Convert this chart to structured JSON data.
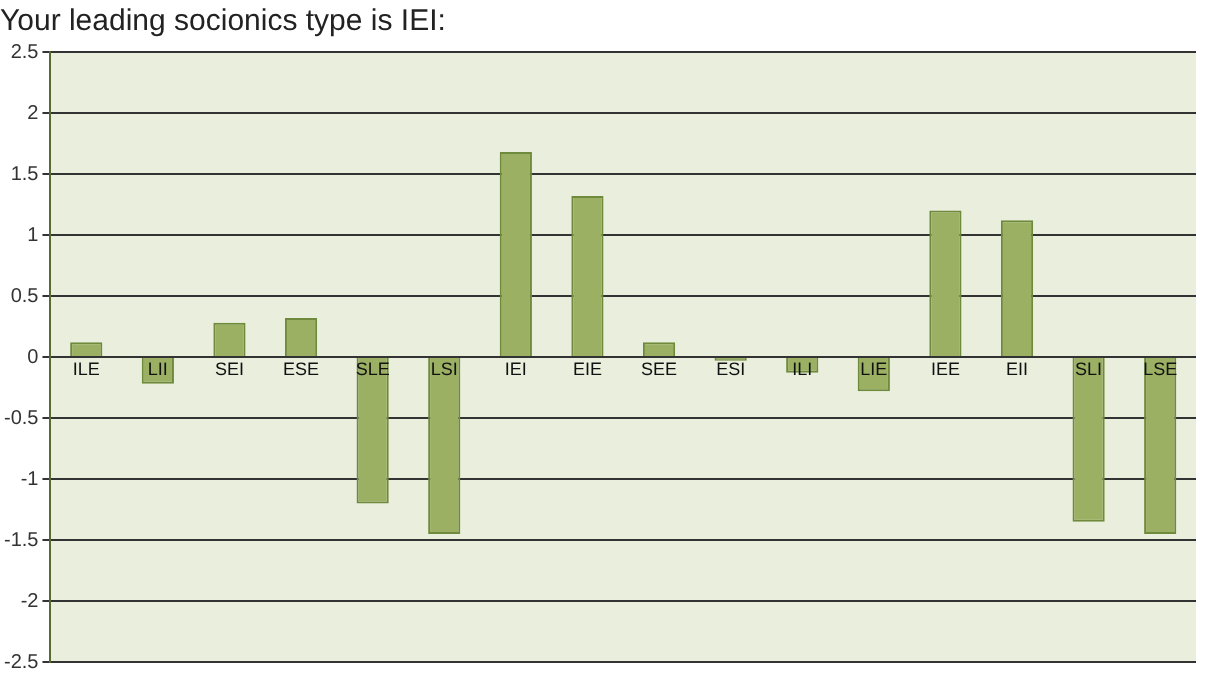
{
  "chart_data": {
    "type": "bar",
    "title": "Your leading socionics type is IEI:",
    "categories": [
      "ILE",
      "LII",
      "SEI",
      "ESE",
      "SLE",
      "LSI",
      "IEI",
      "EIE",
      "SEE",
      "ESI",
      "ILI",
      "LIE",
      "IEE",
      "EII",
      "SLI",
      "LSE"
    ],
    "values": [
      0.12,
      -0.22,
      0.28,
      0.32,
      -1.2,
      -1.45,
      1.68,
      1.32,
      0.12,
      -0.03,
      -0.13,
      -0.28,
      1.2,
      1.12,
      -1.35,
      -1.45
    ],
    "color": "#9bb063",
    "ylim": [
      -2.5,
      2.5
    ],
    "yticks": [
      -2.5,
      -2,
      -1.5,
      -1,
      -0.5,
      0,
      0.5,
      1,
      1.5,
      2,
      2.5
    ],
    "grid": "y",
    "legend": false
  }
}
